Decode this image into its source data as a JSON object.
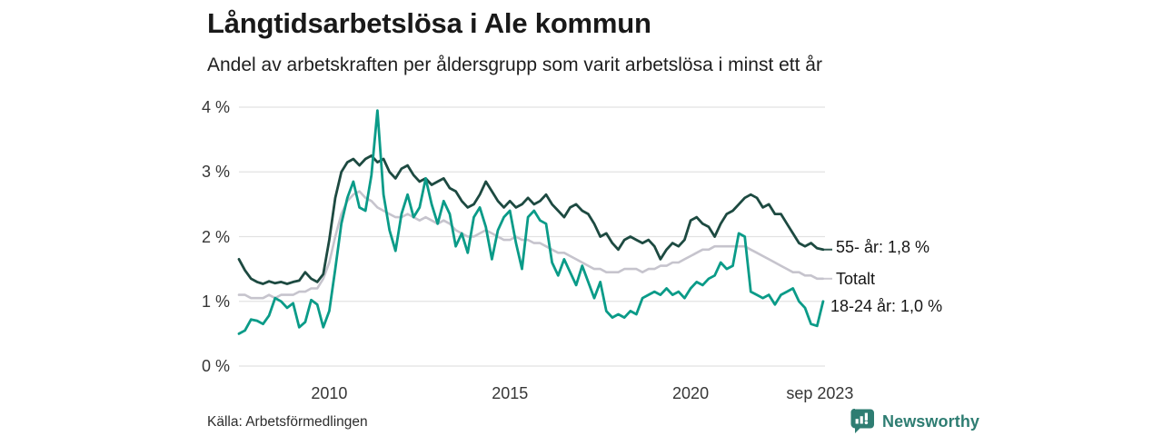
{
  "header": {
    "title": "Långtidsarbetslösa i Ale kommun",
    "subtitle": "Andel av arbetskraften per åldersgrupp som varit arbetslösa i minst ett år"
  },
  "footer": {
    "source": "Källa: Arbetsförmedlingen",
    "brand": "Newsworthy"
  },
  "icons": {
    "logo": "bar-chart-speech-bubble-icon"
  },
  "colors": {
    "series_55": "#1d4a41",
    "series_total": "#c6c4cd",
    "series_18_24": "#0a9b88",
    "grid": "#e2e2e2",
    "axis_text": "#363636",
    "label_text": "#161616",
    "brand": "#2e7d72"
  },
  "chart_data": {
    "type": "line",
    "title": "Långtidsarbetslösa i Ale kommun",
    "subtitle": "Andel av arbetskraften per åldersgrupp som varit arbetslösa i minst ett år",
    "xlabel": "",
    "ylabel": "",
    "ylim": [
      0,
      4
    ],
    "x_range": [
      2007.5,
      2023.72
    ],
    "x_start": 2007.5,
    "x_step": 0.1666667,
    "grid": "horizontal",
    "legend_position": "right-end-labels",
    "y_ticks": [
      {
        "value": 0,
        "label": "0 %"
      },
      {
        "value": 1,
        "label": "1 %"
      },
      {
        "value": 2,
        "label": "2 %"
      },
      {
        "value": 3,
        "label": "3 %"
      },
      {
        "value": 4,
        "label": "4 %"
      }
    ],
    "x_ticks": [
      {
        "value": 2010,
        "label": "2010"
      },
      {
        "value": 2015,
        "label": "2015"
      },
      {
        "value": 2020,
        "label": "2020"
      },
      {
        "value": 2023.58,
        "label": "sep 2023"
      }
    ],
    "series": [
      {
        "id": "total",
        "name": "Totalt",
        "end_label": "Totalt",
        "color_key": "series_total",
        "leader": true,
        "label_dy": 0,
        "values": [
          1.1,
          1.1,
          1.05,
          1.05,
          1.05,
          1.1,
          1.05,
          1.1,
          1.1,
          1.1,
          1.15,
          1.15,
          1.2,
          1.2,
          1.35,
          1.6,
          2.0,
          2.35,
          2.55,
          2.65,
          2.7,
          2.6,
          2.55,
          2.45,
          2.4,
          2.35,
          2.3,
          2.3,
          2.35,
          2.3,
          2.25,
          2.3,
          2.25,
          2.2,
          2.25,
          2.2,
          2.1,
          2.05,
          2.0,
          2.0,
          2.05,
          2.1,
          2.05,
          2.0,
          1.95,
          1.95,
          2.0,
          1.95,
          1.95,
          1.9,
          1.9,
          1.85,
          1.8,
          1.75,
          1.75,
          1.7,
          1.65,
          1.6,
          1.55,
          1.5,
          1.5,
          1.45,
          1.45,
          1.45,
          1.5,
          1.5,
          1.5,
          1.45,
          1.5,
          1.5,
          1.55,
          1.55,
          1.6,
          1.6,
          1.65,
          1.7,
          1.75,
          1.8,
          1.8,
          1.85,
          1.85,
          1.85,
          1.85,
          1.85,
          1.85,
          1.8,
          1.75,
          1.7,
          1.65,
          1.6,
          1.55,
          1.5,
          1.45,
          1.45,
          1.4,
          1.4,
          1.35,
          1.35
        ]
      },
      {
        "id": "55",
        "name": "55- år",
        "end_label": "55- år: 1,8 %",
        "color_key": "series_55",
        "leader": true,
        "label_dy": -3,
        "values": [
          1.65,
          1.48,
          1.35,
          1.3,
          1.27,
          1.31,
          1.28,
          1.3,
          1.27,
          1.3,
          1.32,
          1.45,
          1.35,
          1.3,
          1.42,
          1.95,
          2.6,
          3.0,
          3.15,
          3.2,
          3.1,
          3.2,
          3.25,
          3.15,
          3.2,
          3.0,
          2.9,
          3.05,
          3.1,
          2.95,
          2.85,
          2.9,
          2.8,
          2.85,
          2.9,
          2.75,
          2.7,
          2.55,
          2.45,
          2.5,
          2.65,
          2.85,
          2.7,
          2.55,
          2.45,
          2.55,
          2.45,
          2.5,
          2.6,
          2.5,
          2.55,
          2.65,
          2.5,
          2.4,
          2.3,
          2.45,
          2.5,
          2.4,
          2.35,
          2.2,
          2.0,
          2.05,
          1.9,
          1.8,
          1.95,
          2.0,
          1.95,
          1.9,
          1.95,
          1.85,
          1.65,
          1.8,
          1.9,
          1.85,
          1.95,
          2.25,
          2.3,
          2.2,
          2.15,
          2.0,
          2.2,
          2.35,
          2.4,
          2.5,
          2.6,
          2.65,
          2.6,
          2.45,
          2.5,
          2.35,
          2.35,
          2.2,
          2.05,
          1.9,
          1.85,
          1.9,
          1.82,
          1.8
        ]
      },
      {
        "id": "18_24",
        "name": "18-24 år",
        "end_label": "18-24 år: 1,0 %",
        "color_key": "series_18_24",
        "leader": false,
        "label_dy": 5,
        "values": [
          0.5,
          0.55,
          0.72,
          0.7,
          0.65,
          0.78,
          1.05,
          1.0,
          0.9,
          0.97,
          0.6,
          0.68,
          1.02,
          0.95,
          0.6,
          0.85,
          1.5,
          2.2,
          2.6,
          2.85,
          2.45,
          2.4,
          2.95,
          3.95,
          2.65,
          2.1,
          1.78,
          2.35,
          2.65,
          2.3,
          2.45,
          2.9,
          2.5,
          2.2,
          2.55,
          2.35,
          1.85,
          2.05,
          1.75,
          2.3,
          2.45,
          2.15,
          1.65,
          2.1,
          2.3,
          2.4,
          1.9,
          1.5,
          2.3,
          2.4,
          2.25,
          2.2,
          1.6,
          1.4,
          1.65,
          1.45,
          1.25,
          1.55,
          1.3,
          1.05,
          1.3,
          0.85,
          0.75,
          0.8,
          0.75,
          0.85,
          0.8,
          1.05,
          1.1,
          1.15,
          1.1,
          1.2,
          1.1,
          1.15,
          1.05,
          1.2,
          1.3,
          1.25,
          1.35,
          1.4,
          1.6,
          1.5,
          1.55,
          2.05,
          2.0,
          1.15,
          1.1,
          1.05,
          1.1,
          0.95,
          1.1,
          1.15,
          1.2,
          1.0,
          0.9,
          0.65,
          0.62,
          1.0
        ]
      }
    ]
  }
}
